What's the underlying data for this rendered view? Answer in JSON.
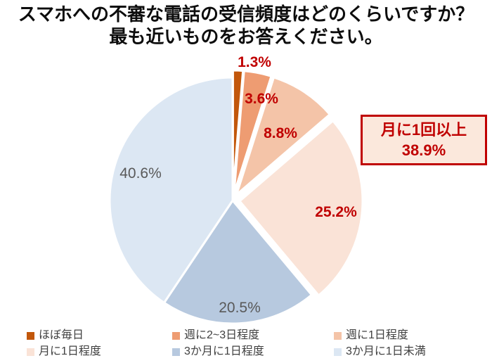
{
  "title": {
    "line1": "スマホへの不審な電話の受信頻度はどのくらいですか？",
    "line2": "最も近いものをお答えください。"
  },
  "chart_data": {
    "type": "pie",
    "categories": [
      "ほぼ毎日",
      "週に2~3日程度",
      "週に1日程度",
      "月に1日程度",
      "3か月に1日程度",
      "3か月に1日未満"
    ],
    "values": [
      1.3,
      3.6,
      8.8,
      25.2,
      20.5,
      40.6
    ],
    "unit": "%",
    "start_angle_deg": 0,
    "direction": "clockwise",
    "colors": [
      "#C2570B",
      "#EE9C72",
      "#F4C4A8",
      "#FAE3D7",
      "#B7C9DF",
      "#DCE7F3"
    ],
    "label_colors": [
      "#C00000",
      "#C00000",
      "#C00000",
      "#C00000",
      "#595959",
      "#595959"
    ],
    "legend_position": "bottom",
    "annotations": [
      "月に1回以上 38.9%"
    ]
  },
  "annotation": {
    "line1": "月に1回以上",
    "line2": "38.9%",
    "border_color": "#C00000",
    "fill_color": "#FBE8DC",
    "text_color": "#C00000"
  },
  "legend": {
    "items": [
      {
        "label": "ほぼ毎日",
        "color": "#C2570B"
      },
      {
        "label": "週に2~3日程度",
        "color": "#EE9C72"
      },
      {
        "label": "週に1日程度",
        "color": "#F4C4A8"
      },
      {
        "label": "月に1日程度",
        "color": "#FAE3D7"
      },
      {
        "label": "3か月に1日程度",
        "color": "#B7C9DF"
      },
      {
        "label": "3か月に1日未満",
        "color": "#DCE7F3"
      }
    ]
  }
}
